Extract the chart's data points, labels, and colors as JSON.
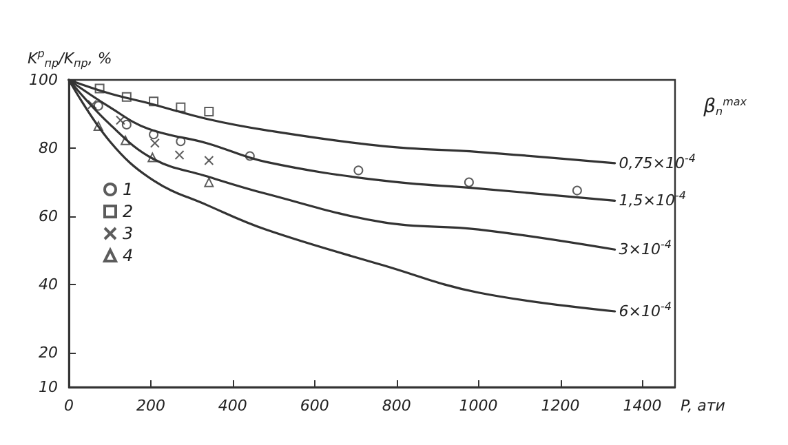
{
  "chart_data": {
    "type": "line",
    "xlabel": "P, ати",
    "ylabel": "K$^{р}$$_{пр}$/K$_{пр}$, %",
    "legend_title": "β$_{n}$$^{max}$",
    "xlim": [
      0,
      1480
    ],
    "xticks": [
      0,
      200,
      400,
      600,
      800,
      1000,
      1200,
      1400
    ],
    "ylim": [
      10,
      100
    ],
    "yticks": [
      10,
      20,
      40,
      60,
      80,
      100
    ],
    "grid": false,
    "legend": "left",
    "line_style": "solid",
    "series": [
      {
        "name": "0,75×10$^{-4}$",
        "color": "#333333",
        "marker": "none",
        "x": [
          0,
          100,
          200,
          336,
          480,
          767,
          1000,
          1333
        ],
        "values": [
          100,
          96,
          93,
          88.6,
          85.3,
          80.6,
          78.9,
          75.6
        ]
      },
      {
        "name": "1,5×10$^{-4}$",
        "color": "#333333",
        "marker": "none",
        "x": [
          0,
          100,
          193,
          336,
          480,
          767,
          1000,
          1333
        ],
        "values": [
          100,
          92,
          85.7,
          81.5,
          76,
          70.5,
          68.2,
          64.6
        ]
      },
      {
        "name": "3×10$^{-4}$",
        "color": "#333333",
        "marker": "none",
        "x": [
          0,
          100,
          207,
          336,
          480,
          767,
          1000,
          1333
        ],
        "values": [
          100,
          87,
          76.8,
          71.8,
          66.7,
          58.3,
          56.2,
          50.3
        ]
      },
      {
        "name": "6×10$^{-4}$",
        "color": "#333333",
        "marker": "none",
        "x": [
          0,
          100,
          207,
          336,
          480,
          767,
          1000,
          1333
        ],
        "values": [
          100,
          82,
          70.5,
          63.4,
          56.2,
          45.7,
          37.7,
          32.2
        ]
      },
      {
        "name": "1",
        "type": "scatter",
        "color": "#333333",
        "marker": "circle",
        "x": [
          72,
          141,
          207,
          273,
          442,
          707,
          977,
          1241
        ],
        "values": [
          92.4,
          86.9,
          84,
          82,
          77.7,
          73.5,
          70,
          67.6
        ]
      },
      {
        "name": "2",
        "type": "scatter",
        "color": "#333333",
        "marker": "square",
        "x": [
          75,
          141,
          207,
          273,
          342
        ],
        "values": [
          97.5,
          95,
          93.7,
          92,
          90.7
        ]
      },
      {
        "name": "3",
        "type": "scatter",
        "color": "#333333",
        "marker": "cross",
        "x": [
          57,
          126,
          210,
          270,
          342
        ],
        "values": [
          92.8,
          88.2,
          81.5,
          78,
          76.4
        ]
      },
      {
        "name": "4",
        "type": "scatter",
        "color": "#333333",
        "marker": "triangle",
        "x": [
          72,
          138,
          204,
          342
        ],
        "values": [
          86.5,
          82.3,
          77.3,
          70
        ]
      }
    ]
  }
}
